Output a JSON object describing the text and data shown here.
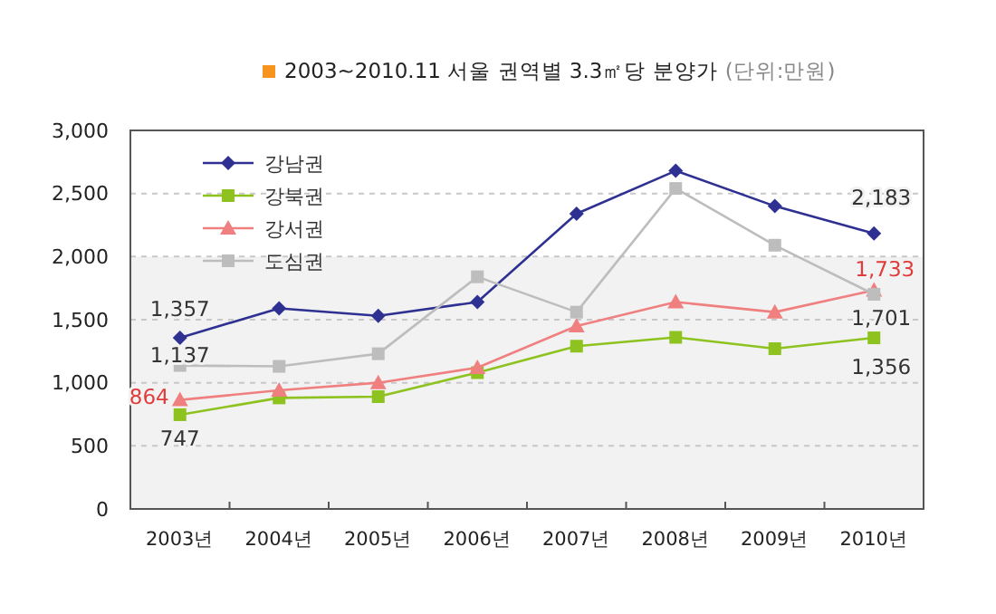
{
  "chart_data": {
    "type": "line",
    "title": "2003~2010.11 서울 권역별 3.3㎡당 분양가",
    "subtitle": "(단위:만원)",
    "categories": [
      "2003년",
      "2004년",
      "2005년",
      "2006년",
      "2007년",
      "2008년",
      "2009년",
      "2010년"
    ],
    "series": [
      {
        "name": "강남권",
        "color": "#2e3192",
        "marker": "diamond",
        "values": [
          1357,
          1590,
          1530,
          1640,
          2340,
          2680,
          2400,
          2183
        ],
        "value_labels": [
          "1,357",
          null,
          null,
          null,
          null,
          null,
          null,
          "2,183"
        ]
      },
      {
        "name": "강북권",
        "color": "#8dc21f",
        "marker": "square",
        "values": [
          747,
          880,
          890,
          1080,
          1290,
          1360,
          1270,
          1356
        ],
        "value_labels": [
          "747",
          null,
          null,
          null,
          null,
          null,
          null,
          "1,356"
        ]
      },
      {
        "name": "강서권",
        "color": "#f08080",
        "marker": "triangle",
        "values": [
          864,
          940,
          1000,
          1120,
          1450,
          1640,
          1560,
          1733
        ],
        "value_labels": [
          "864",
          null,
          null,
          null,
          null,
          null,
          null,
          "1,733"
        ]
      },
      {
        "name": "도심권",
        "color": "#bdbdbd",
        "marker": "square",
        "values": [
          1137,
          1130,
          1230,
          1840,
          1560,
          2540,
          2090,
          1701
        ],
        "value_labels": [
          "1,137",
          null,
          null,
          null,
          null,
          null,
          null,
          "1,701"
        ]
      }
    ],
    "ylim": [
      0,
      3000
    ],
    "yticks": [
      {
        "value": 0,
        "label": "0"
      },
      {
        "value": 500,
        "label": "500"
      },
      {
        "value": 1000,
        "label": "1,000"
      },
      {
        "value": 1500,
        "label": "1,500"
      },
      {
        "value": 2000,
        "label": "2,000"
      },
      {
        "value": 2500,
        "label": "2,500"
      },
      {
        "value": 3000,
        "label": "3,000"
      }
    ],
    "bands": [
      {
        "axis": "y",
        "from": 0,
        "to": 2000,
        "color": "#f2f2f2"
      }
    ],
    "grid": "y",
    "legend": "top left",
    "line_style": "solid"
  }
}
